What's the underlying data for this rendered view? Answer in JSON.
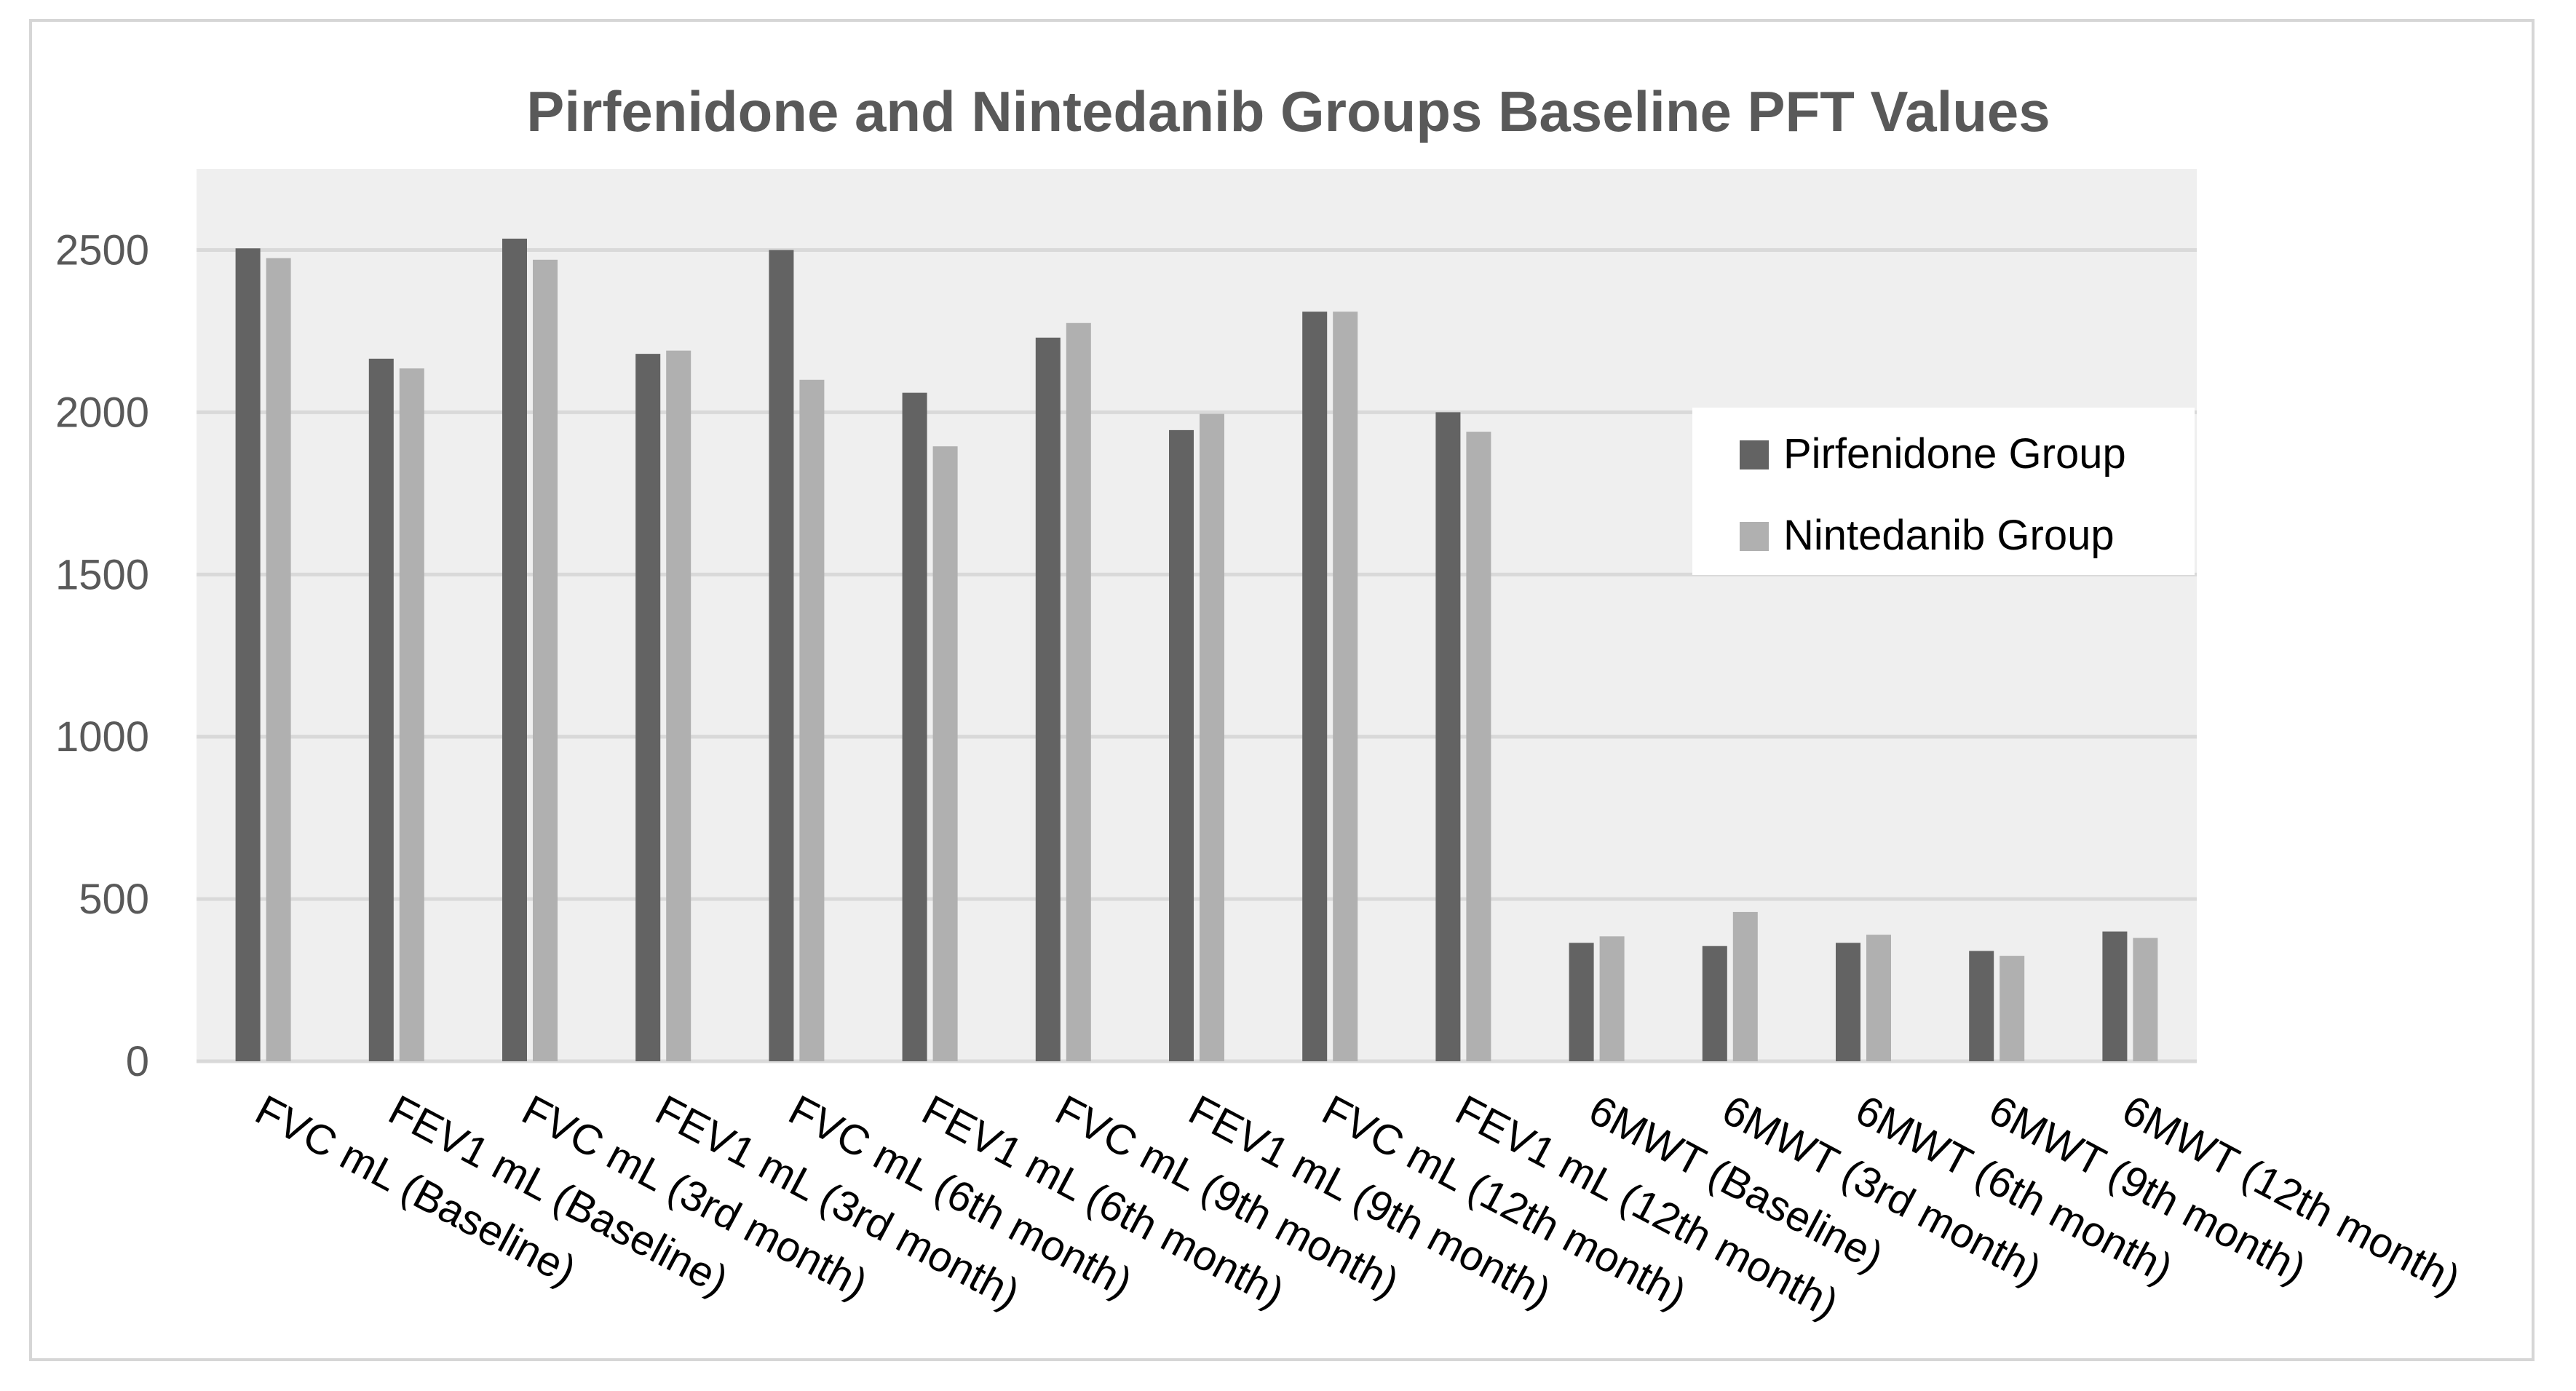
{
  "chart_data": {
    "type": "bar",
    "title": "Pirfenidone and Nintedanib Groups Baseline PFT Values",
    "xlabel": "",
    "ylabel": "",
    "ylim": [
      0,
      2750
    ],
    "yticks": [
      0,
      500,
      1000,
      1500,
      2000,
      2500
    ],
    "grid": true,
    "legend_position": "right",
    "categories": [
      "FVC mL (Baseline)",
      "FEV1 mL (Baseline)",
      "FVC mL (3rd month)",
      "FEV1 mL (3rd month)",
      "FVC mL (6th month)",
      "FEV1 mL (6th month)",
      "FVC mL (9th month)",
      "FEV1 mL (9th month)",
      "FVC mL (12th month)",
      "FEV1 mL (12th month)",
      "6MWT (Baseline)",
      "6MWT (3rd month)",
      "6MWT (6th month)",
      "6MWT (9th month)",
      "6MWT (12th month)"
    ],
    "series": [
      {
        "name": "Pirfenidone Group",
        "color": "#636363",
        "values": [
          2505,
          2165,
          2535,
          2180,
          2500,
          2060,
          2230,
          1945,
          2310,
          2000,
          365,
          355,
          365,
          340,
          400
        ]
      },
      {
        "name": "Nintedanib Group",
        "color": "#b0b0b0",
        "values": [
          2475,
          2135,
          2470,
          2190,
          2100,
          1895,
          2275,
          1995,
          2310,
          1940,
          385,
          460,
          390,
          325,
          380
        ]
      }
    ]
  }
}
